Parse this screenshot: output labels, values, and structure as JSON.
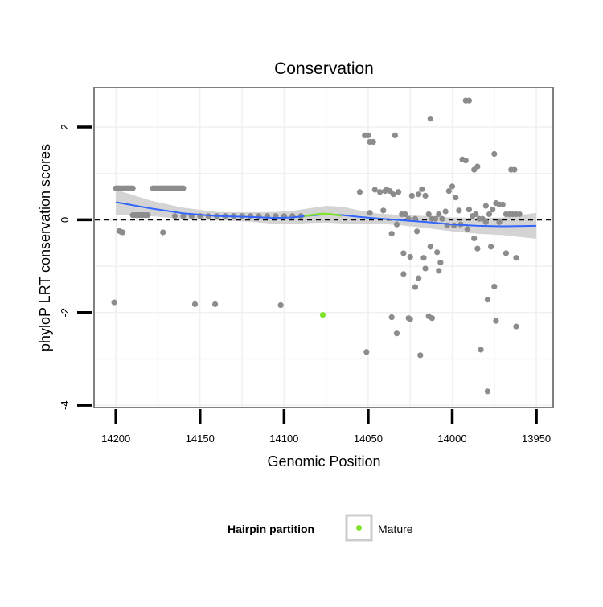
{
  "chart_data": {
    "type": "scatter",
    "title": "Conservation",
    "xlabel": "Genomic Position",
    "ylabel": "phyloP LRT conservation scores",
    "x_reversed": true,
    "xlim": [
      14213,
      13940
    ],
    "ylim": [
      -4.05,
      2.85
    ],
    "x_ticks": [
      14200,
      14150,
      14100,
      14050,
      14000,
      13950
    ],
    "y_ticks": [
      -4,
      -2,
      0,
      2
    ],
    "grid": true,
    "reference_line_y": 0,
    "legend": {
      "title": "Hairpin partition",
      "entries": [
        "Mature"
      ],
      "placement": "bottom"
    },
    "colors": {
      "points": "#8c8c8c",
      "mature": "#7fe32a",
      "smooth_line": "#3366ff",
      "smooth_band": "#cccccc"
    },
    "series": [
      {
        "kind": "points",
        "points": [
          [
            14200,
            0.68
          ],
          [
            14199,
            0.68
          ],
          [
            14198,
            0.68
          ],
          [
            14197,
            0.68
          ],
          [
            14196,
            0.68
          ],
          [
            14195,
            0.68
          ],
          [
            14194,
            0.68
          ],
          [
            14193,
            0.68
          ],
          [
            14192,
            0.68
          ],
          [
            14191,
            0.68
          ],
          [
            14190,
            0.68
          ],
          [
            14198,
            -0.24
          ],
          [
            14197,
            -0.26
          ],
          [
            14196,
            -0.27
          ],
          [
            14201,
            -1.78
          ],
          [
            14190,
            0.1
          ],
          [
            14189,
            0.1
          ],
          [
            14188,
            0.1
          ],
          [
            14187,
            0.1
          ],
          [
            14186,
            0.1
          ],
          [
            14185,
            0.1
          ],
          [
            14184,
            0.1
          ],
          [
            14183,
            0.1
          ],
          [
            14182,
            0.1
          ],
          [
            14181,
            0.1
          ],
          [
            14178,
            0.68
          ],
          [
            14177,
            0.68
          ],
          [
            14176,
            0.68
          ],
          [
            14175,
            0.68
          ],
          [
            14174,
            0.68
          ],
          [
            14173,
            0.68
          ],
          [
            14172,
            0.68
          ],
          [
            14171,
            0.68
          ],
          [
            14170,
            0.68
          ],
          [
            14169,
            0.68
          ],
          [
            14168,
            0.68
          ],
          [
            14167,
            0.68
          ],
          [
            14166,
            0.68
          ],
          [
            14165,
            0.68
          ],
          [
            14164,
            0.68
          ],
          [
            14163,
            0.68
          ],
          [
            14162,
            0.68
          ],
          [
            14161,
            0.68
          ],
          [
            14160,
            0.68
          ],
          [
            14172,
            -0.27
          ],
          [
            14165,
            0.08
          ],
          [
            14160,
            0.08
          ],
          [
            14155,
            0.08
          ],
          [
            14150,
            0.08
          ],
          [
            14145,
            0.08
          ],
          [
            14140,
            0.08
          ],
          [
            14135,
            0.08
          ],
          [
            14130,
            0.08
          ],
          [
            14125,
            0.08
          ],
          [
            14120,
            0.08
          ],
          [
            14115,
            0.08
          ],
          [
            14110,
            0.08
          ],
          [
            14105,
            0.08
          ],
          [
            14100,
            0.08
          ],
          [
            14095,
            0.08
          ],
          [
            14090,
            0.08
          ],
          [
            14153,
            -1.82
          ],
          [
            14141,
            -1.82
          ],
          [
            14102,
            -1.84
          ],
          [
            14055,
            0.6
          ],
          [
            14052,
            1.82
          ],
          [
            14050,
            1.82
          ],
          [
            14049,
            1.68
          ],
          [
            14047,
            1.68
          ],
          [
            14046,
            0.65
          ],
          [
            14043,
            0.6
          ],
          [
            14040,
            0.62
          ],
          [
            14039,
            0.65
          ],
          [
            14037,
            0.62
          ],
          [
            14035,
            0.55
          ],
          [
            14034,
            1.82
          ],
          [
            14032,
            0.6
          ],
          [
            14030,
            0.12
          ],
          [
            14028,
            0.12
          ],
          [
            14026,
            0.02
          ],
          [
            14024,
            0.52
          ],
          [
            14022,
            0.02
          ],
          [
            14020,
            0.55
          ],
          [
            14018,
            0.66
          ],
          [
            14016,
            0.52
          ],
          [
            14014,
            0.12
          ],
          [
            14012,
            0.02
          ],
          [
            14010,
            0.02
          ],
          [
            14008,
            0.12
          ],
          [
            14006,
            0.02
          ],
          [
            14004,
            0.18
          ],
          [
            14002,
            0.62
          ],
          [
            14000,
            0.72
          ],
          [
            13998,
            0.48
          ],
          [
            13996,
            0.2
          ],
          [
            13994,
            1.3
          ],
          [
            13992,
            1.28
          ],
          [
            13990,
            0.22
          ],
          [
            13988,
            0.08
          ],
          [
            13986,
            0.12
          ],
          [
            13984,
            0.02
          ],
          [
            13982,
            0.02
          ],
          [
            13980,
            0.3
          ],
          [
            13978,
            0.12
          ],
          [
            13976,
            0.22
          ],
          [
            13974,
            0.36
          ],
          [
            13972,
            0.33
          ],
          [
            13970,
            0.33
          ],
          [
            13968,
            0.12
          ],
          [
            13966,
            0.12
          ],
          [
            13964,
            0.12
          ],
          [
            13962,
            0.12
          ],
          [
            13960,
            0.12
          ],
          [
            14049,
            0.15
          ],
          [
            14041,
            0.2
          ],
          [
            14036,
            -0.3
          ],
          [
            14033,
            -0.1
          ],
          [
            14029,
            -0.72
          ],
          [
            14025,
            -0.8
          ],
          [
            14021,
            -0.25
          ],
          [
            14017,
            -0.82
          ],
          [
            14013,
            -0.58
          ],
          [
            14009,
            -0.7
          ],
          [
            14007,
            -0.92
          ],
          [
            14003,
            -0.12
          ],
          [
            13999,
            -0.12
          ],
          [
            13995,
            -0.1
          ],
          [
            13991,
            -0.2
          ],
          [
            13987,
            -0.4
          ],
          [
            13985,
            -0.62
          ],
          [
            13980,
            -0.05
          ],
          [
            13977,
            -0.58
          ],
          [
            13972,
            -0.05
          ],
          [
            13968,
            -0.72
          ],
          [
            13962,
            -0.82
          ],
          [
            14029,
            -1.17
          ],
          [
            14025,
            -2.14
          ],
          [
            14022,
            -1.45
          ],
          [
            14020,
            -1.26
          ],
          [
            14016,
            -1.05
          ],
          [
            14014,
            -2.08
          ],
          [
            14012,
            -2.12
          ],
          [
            14008,
            -1.1
          ],
          [
            13979,
            -1.72
          ],
          [
            13975,
            -1.44
          ],
          [
            13974,
            -2.18
          ],
          [
            13962,
            -2.3
          ],
          [
            14033,
            -2.45
          ],
          [
            14036,
            -2.1
          ],
          [
            14026,
            -2.12
          ],
          [
            14051,
            -2.85
          ],
          [
            14019,
            -2.92
          ],
          [
            13983,
            -2.8
          ],
          [
            13979,
            -3.7
          ],
          [
            14013,
            2.18
          ],
          [
            13992,
            2.57
          ],
          [
            13990,
            2.57
          ],
          [
            13987,
            1.08
          ],
          [
            13985,
            1.15
          ],
          [
            13975,
            1.42
          ],
          [
            13965,
            1.08
          ],
          [
            13963,
            1.08
          ]
        ]
      },
      {
        "name": "Mature",
        "kind": "points",
        "points": [
          [
            14077,
            -2.05
          ]
        ]
      },
      {
        "kind": "smooth_line",
        "points": [
          [
            14200,
            0.38
          ],
          [
            14180,
            0.25
          ],
          [
            14160,
            0.14
          ],
          [
            14140,
            0.08
          ],
          [
            14120,
            0.06
          ],
          [
            14105,
            0.04
          ],
          [
            14095,
            0.05
          ],
          [
            14085,
            0.09
          ],
          [
            14075,
            0.12
          ],
          [
            14065,
            0.1
          ],
          [
            14055,
            0.06
          ],
          [
            14045,
            0.03
          ],
          [
            14030,
            -0.01
          ],
          [
            14015,
            -0.05
          ],
          [
            14000,
            -0.1
          ],
          [
            13985,
            -0.13
          ],
          [
            13970,
            -0.14
          ],
          [
            13950,
            -0.13
          ]
        ]
      },
      {
        "kind": "smooth_band",
        "upper": [
          [
            14200,
            0.65
          ],
          [
            14180,
            0.42
          ],
          [
            14160,
            0.26
          ],
          [
            14140,
            0.17
          ],
          [
            14120,
            0.16
          ],
          [
            14105,
            0.17
          ],
          [
            14095,
            0.19
          ],
          [
            14085,
            0.25
          ],
          [
            14075,
            0.3
          ],
          [
            14065,
            0.28
          ],
          [
            14055,
            0.2
          ],
          [
            14045,
            0.14
          ],
          [
            14030,
            0.1
          ],
          [
            14015,
            0.08
          ],
          [
            14000,
            0.05
          ],
          [
            13985,
            0.04
          ],
          [
            13970,
            0.05
          ],
          [
            13950,
            0.15
          ]
        ],
        "lower": [
          [
            14200,
            0.11
          ],
          [
            14180,
            0.08
          ],
          [
            14160,
            0.02
          ],
          [
            14140,
            -0.01
          ],
          [
            14120,
            -0.04
          ],
          [
            14105,
            -0.09
          ],
          [
            14095,
            -0.09
          ],
          [
            14085,
            -0.07
          ],
          [
            14075,
            -0.06
          ],
          [
            14065,
            -0.08
          ],
          [
            14055,
            -0.08
          ],
          [
            14045,
            -0.08
          ],
          [
            14030,
            -0.12
          ],
          [
            14015,
            -0.18
          ],
          [
            14000,
            -0.25
          ],
          [
            13985,
            -0.3
          ],
          [
            13970,
            -0.33
          ],
          [
            13950,
            -0.41
          ]
        ]
      },
      {
        "kind": "smooth_line_highlight",
        "name": "Mature",
        "points": [
          [
            14088,
            0.08
          ],
          [
            14082,
            0.11
          ],
          [
            14077,
            0.13
          ],
          [
            14072,
            0.12
          ],
          [
            14066,
            0.09
          ]
        ]
      }
    ]
  }
}
